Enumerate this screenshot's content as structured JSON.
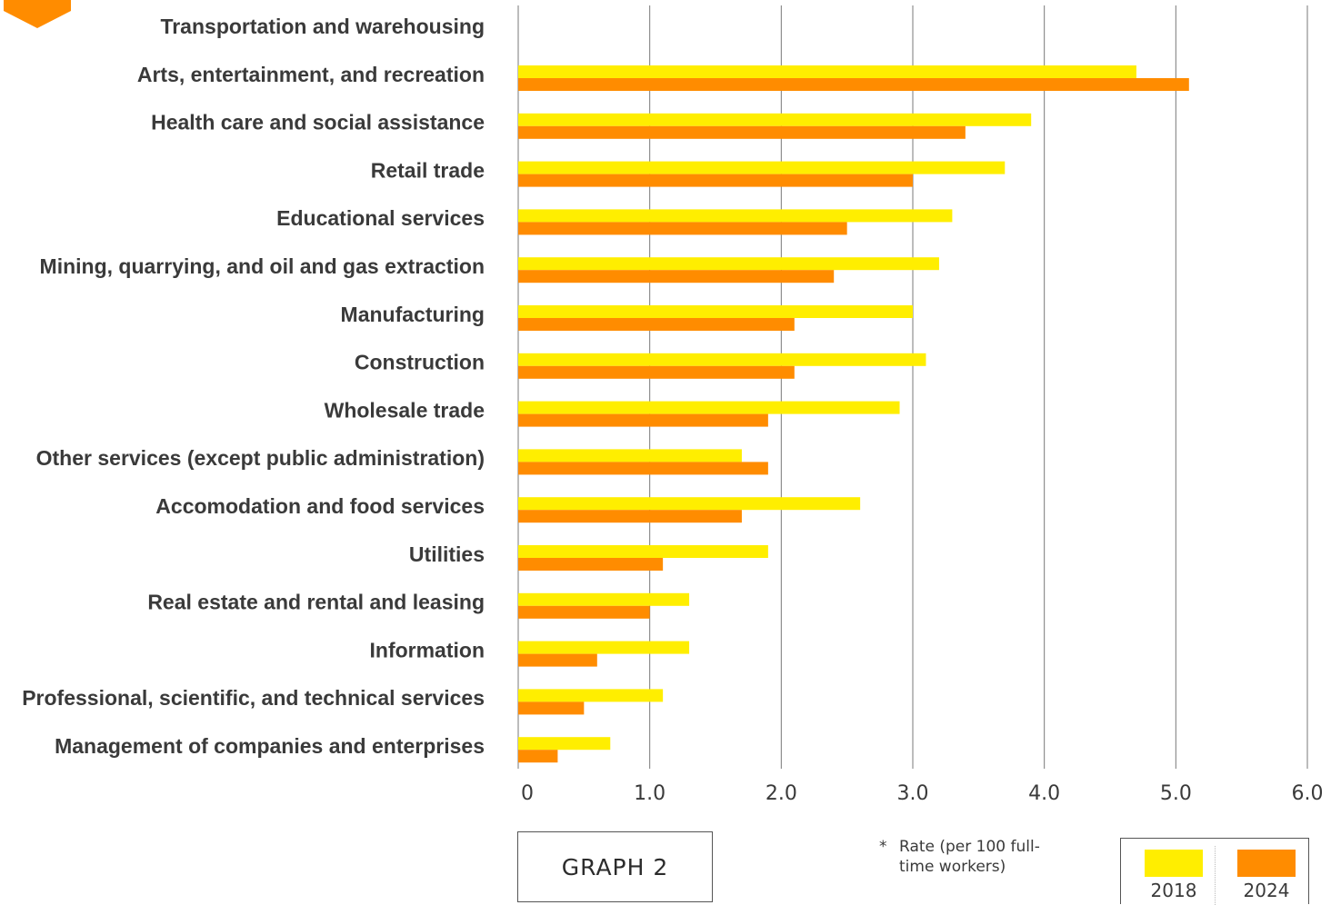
{
  "colors": {
    "series_2018": "#ffee00",
    "series_2024": "#ff8c00",
    "tab": "#ff8c00",
    "grid": "#7a7a7a",
    "text": "#3a3a3a"
  },
  "chart_data": {
    "type": "bar",
    "orientation": "horizontal",
    "categories": [
      "Transportation and warehousing",
      "Arts, entertainment, and recreation",
      "Health care and social assistance",
      "Retail trade",
      "Educational services",
      "Mining, quarrying, and oil and gas extraction",
      "Manufacturing",
      "Construction",
      "Wholesale trade",
      "Other services (except public administration)",
      "Accomodation and food services",
      "Utilities",
      "Real estate and rental and leasing",
      "Information",
      "Professional, scientific, and technical services",
      "Management of companies and enterprises"
    ],
    "series": [
      {
        "name": "2018",
        "values": [
          null,
          4.7,
          3.9,
          3.7,
          3.3,
          3.2,
          3.0,
          3.1,
          2.9,
          1.7,
          2.6,
          1.9,
          1.3,
          1.3,
          1.1,
          0.7
        ]
      },
      {
        "name": "2024",
        "values": [
          null,
          5.1,
          3.4,
          3.0,
          2.5,
          2.4,
          2.1,
          2.1,
          1.9,
          1.9,
          1.7,
          1.1,
          1.0,
          0.6,
          0.5,
          0.3
        ]
      }
    ],
    "xlim": [
      0,
      6
    ],
    "xticks": [
      0,
      1,
      2,
      3,
      4,
      5,
      6
    ],
    "xtick_labels": [
      "0",
      "1.0",
      "2.0",
      "3.0",
      "4.0",
      "5.0",
      "6.0"
    ],
    "grid": "vertical",
    "legend_position": "bottom-right"
  },
  "graph_label": "GRAPH 2",
  "footnote": {
    "marker": "*",
    "text": "Rate (per 100 full-time workers)"
  },
  "legend": {
    "items": [
      "2018",
      "2024"
    ]
  }
}
